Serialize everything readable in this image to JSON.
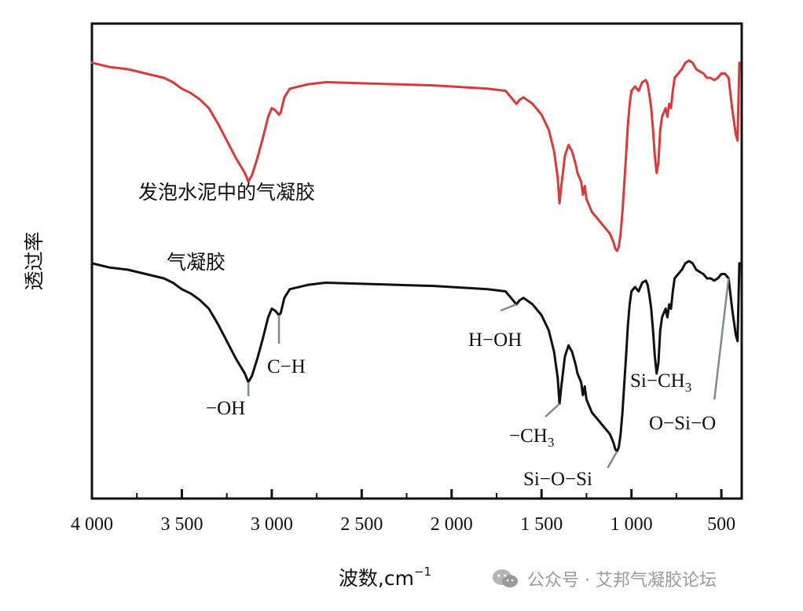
{
  "chart_data": {
    "type": "line",
    "xlabel": "波数,cm",
    "xlabel_sup": "−1",
    "ylabel": "透过率",
    "xlim": [
      4000,
      400
    ],
    "x_ticks": [
      4000,
      3500,
      3000,
      2500,
      2000,
      1500,
      1000,
      500
    ],
    "x_tick_labels": [
      "4 000",
      "3 500",
      "3 000",
      "2 500",
      "2 000",
      "1 500",
      "1 000",
      "500"
    ],
    "grid": false,
    "series": [
      {
        "name": "发泡水泥中的气凝胶",
        "color": "#d93b3b",
        "x": [
          4000,
          3900,
          3800,
          3700,
          3600,
          3550,
          3500,
          3450,
          3400,
          3350,
          3300,
          3250,
          3200,
          3150,
          3130,
          3110,
          3080,
          3050,
          3020,
          3000,
          2980,
          2960,
          2950,
          2930,
          2900,
          2800,
          2700,
          2500,
          2300,
          2100,
          2000,
          1900,
          1800,
          1700,
          1660,
          1640,
          1620,
          1600,
          1550,
          1500,
          1460,
          1430,
          1410,
          1400,
          1390,
          1370,
          1350,
          1330,
          1310,
          1300,
          1280,
          1270,
          1260,
          1250,
          1240,
          1230,
          1220,
          1200,
          1180,
          1160,
          1140,
          1120,
          1100,
          1090,
          1080,
          1070,
          1060,
          1050,
          1040,
          1030,
          1020,
          1010,
          1000,
          980,
          960,
          940,
          920,
          910,
          900,
          890,
          880,
          870,
          860,
          850,
          840,
          830,
          820,
          810,
          800,
          790,
          780,
          770,
          760,
          740,
          720,
          700,
          680,
          660,
          640,
          620,
          600,
          580,
          560,
          540,
          520,
          500,
          480,
          460,
          440,
          420,
          410,
          400
        ],
        "y": [
          91,
          89,
          88,
          86,
          84,
          82,
          79,
          77,
          74,
          70,
          63,
          55,
          47,
          40,
          36,
          39,
          47,
          56,
          66,
          70,
          69,
          67,
          68,
          75,
          79,
          81,
          82,
          81.5,
          81,
          80.5,
          80,
          79.5,
          79,
          78,
          74,
          72,
          74,
          75,
          72,
          67,
          60,
          50,
          38,
          26,
          34,
          48,
          53,
          50,
          44,
          40,
          36,
          30,
          34,
          28,
          26,
          24,
          22,
          20,
          18,
          16,
          14,
          12,
          8,
          5,
          4,
          6,
          12,
          22,
          35,
          48,
          62,
          72,
          78,
          80,
          78,
          82,
          83,
          81,
          76,
          70,
          60,
          48,
          40,
          45,
          60,
          66,
          68,
          70,
          66,
          72,
          70,
          78,
          84,
          86,
          88,
          91,
          92,
          91,
          88,
          87,
          86,
          84,
          84,
          83,
          84,
          86,
          86,
          84,
          70,
          58,
          55,
          91
        ]
      },
      {
        "name": "气凝胶",
        "color": "#111111",
        "x": [
          4000,
          3900,
          3800,
          3700,
          3600,
          3550,
          3500,
          3450,
          3400,
          3350,
          3300,
          3250,
          3200,
          3150,
          3130,
          3110,
          3080,
          3050,
          3020,
          3000,
          2980,
          2960,
          2950,
          2930,
          2900,
          2800,
          2700,
          2500,
          2300,
          2100,
          2000,
          1900,
          1800,
          1700,
          1660,
          1640,
          1620,
          1600,
          1550,
          1500,
          1460,
          1430,
          1410,
          1400,
          1390,
          1370,
          1350,
          1330,
          1310,
          1300,
          1280,
          1270,
          1260,
          1250,
          1240,
          1230,
          1220,
          1200,
          1180,
          1160,
          1140,
          1120,
          1100,
          1090,
          1080,
          1070,
          1060,
          1050,
          1040,
          1030,
          1020,
          1010,
          1000,
          980,
          960,
          940,
          920,
          910,
          900,
          890,
          880,
          870,
          860,
          850,
          840,
          830,
          820,
          810,
          800,
          790,
          780,
          770,
          760,
          740,
          720,
          700,
          680,
          660,
          640,
          620,
          600,
          580,
          560,
          540,
          520,
          500,
          480,
          460,
          440,
          420,
          410,
          400
        ],
        "y": [
          91,
          89,
          88,
          86,
          84,
          82,
          79,
          77,
          74,
          70,
          63,
          55,
          47,
          40,
          36,
          39,
          47,
          56,
          66,
          70,
          69,
          67,
          68,
          75,
          79,
          81,
          82,
          81.5,
          81,
          80.5,
          80,
          79.5,
          79,
          78,
          74,
          72,
          74,
          75,
          72,
          67,
          60,
          50,
          38,
          26,
          34,
          48,
          53,
          50,
          44,
          40,
          36,
          30,
          34,
          28,
          26,
          24,
          22,
          20,
          18,
          16,
          14,
          12,
          8,
          5,
          4,
          6,
          12,
          22,
          35,
          48,
          62,
          72,
          78,
          80,
          78,
          82,
          83,
          81,
          76,
          70,
          60,
          48,
          40,
          45,
          60,
          66,
          68,
          70,
          66,
          72,
          70,
          78,
          84,
          86,
          88,
          91,
          92,
          91,
          88,
          87,
          86,
          84,
          84,
          83,
          84,
          86,
          86,
          84,
          70,
          58,
          55,
          91
        ]
      }
    ],
    "annotations": [
      {
        "text": "−OH",
        "x": 3130
      },
      {
        "text": "C−H",
        "x": 2960
      },
      {
        "text": "H−OH",
        "x": 1640
      },
      {
        "text": "−CH",
        "sub": "3",
        "x": 1400
      },
      {
        "text": "Si−O−Si",
        "x": 1080
      },
      {
        "text": "Si−CH",
        "sub": "3",
        "x": 850
      },
      {
        "text": "O−Si−O",
        "x": 460
      }
    ]
  },
  "watermark": {
    "icon": "wechat-icon",
    "text": "公众号 · 艾邦气凝胶论坛"
  }
}
